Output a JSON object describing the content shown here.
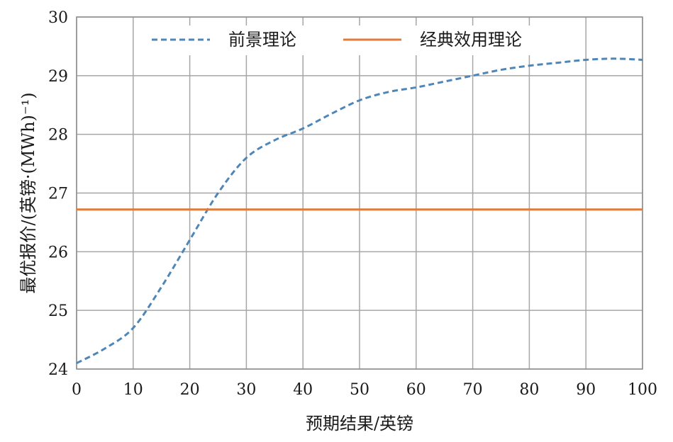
{
  "chart_data": {
    "type": "line",
    "title": "",
    "xlabel": "预期结果/英镑",
    "ylabel": "最优报价/(英镑·(MWh)⁻¹)",
    "xlim": [
      0,
      100
    ],
    "ylim": [
      24,
      30
    ],
    "xticks": [
      0,
      10,
      20,
      30,
      40,
      50,
      60,
      70,
      80,
      90,
      100
    ],
    "yticks": [
      24,
      25,
      26,
      27,
      28,
      29,
      30
    ],
    "grid": true,
    "legend_position": "top-center",
    "series": [
      {
        "name": "前景理论",
        "style": "dashed",
        "color": "#4f86b8",
        "x": [
          0,
          5,
          10,
          15,
          20,
          25,
          30,
          35,
          40,
          45,
          50,
          55,
          60,
          65,
          70,
          75,
          80,
          85,
          90,
          95,
          100
        ],
        "y": [
          24.1,
          24.35,
          24.7,
          25.4,
          26.2,
          27.0,
          27.6,
          27.9,
          28.1,
          28.35,
          28.58,
          28.72,
          28.8,
          28.9,
          29.0,
          29.1,
          29.17,
          29.22,
          29.27,
          29.29,
          29.27
        ]
      },
      {
        "name": "经典效用理论",
        "style": "solid",
        "color": "#e07b39",
        "x": [
          0,
          100
        ],
        "y": [
          26.72,
          26.72
        ]
      }
    ]
  }
}
